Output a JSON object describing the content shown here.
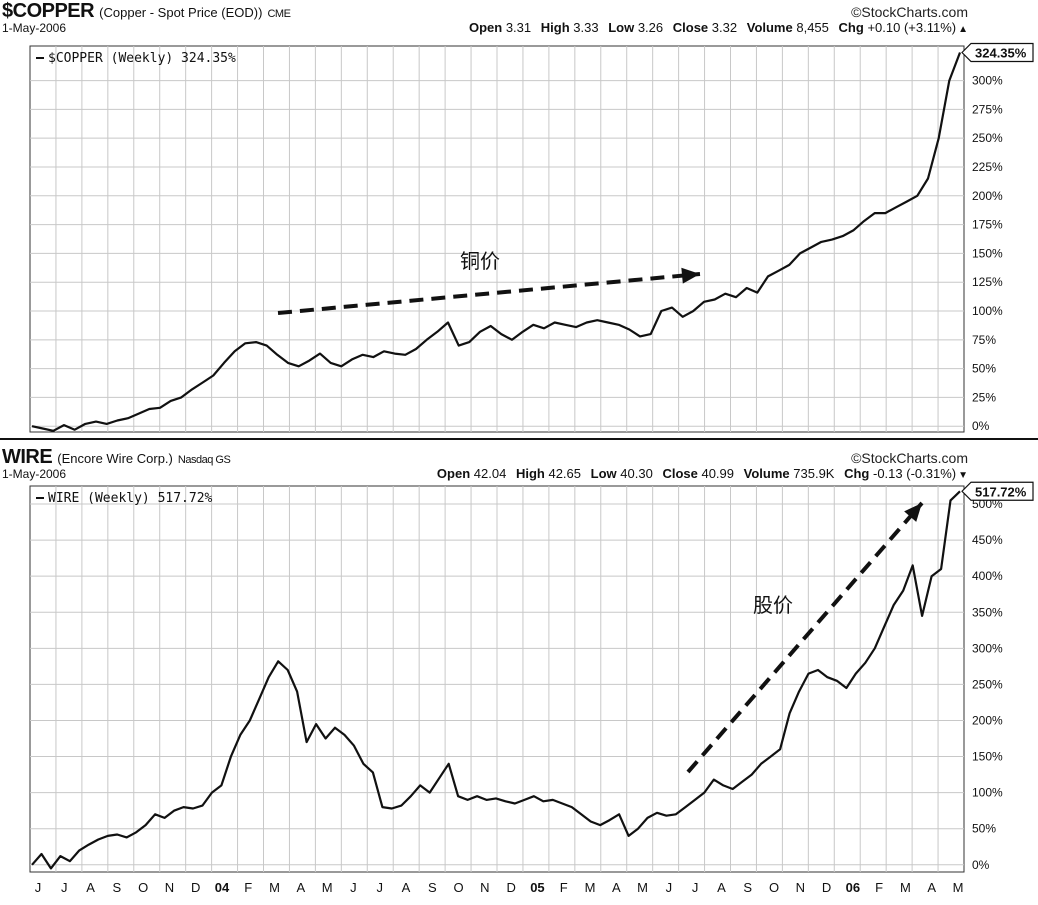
{
  "top": {
    "symbol": "$COPPER",
    "description": "(Copper - Spot Price (EOD))",
    "exchange": "CME",
    "brand": "©StockCharts.com",
    "date": "1-May-2006",
    "quote": {
      "open_label": "Open",
      "open": "3.31",
      "high_label": "High",
      "high": "3.33",
      "low_label": "Low",
      "low": "3.26",
      "close_label": "Close",
      "close": "3.32",
      "volume_label": "Volume",
      "volume": "8,455",
      "chg_label": "Chg",
      "chg": "+0.10 (+3.11%)",
      "dir_icon": "up-triangle"
    },
    "legend": "$COPPER (Weekly) 324.35%",
    "last_label": "324.35%",
    "annotation": "铜价"
  },
  "bottom": {
    "symbol": "WIRE",
    "description": "(Encore Wire Corp.)",
    "exchange": "Nasdaq GS",
    "brand": "©StockCharts.com",
    "date": "1-May-2006",
    "quote": {
      "open_label": "Open",
      "open": "42.04",
      "high_label": "High",
      "high": "42.65",
      "low_label": "Low",
      "low": "40.30",
      "close_label": "Close",
      "close": "40.99",
      "volume_label": "Volume",
      "volume": "735.9K",
      "chg_label": "Chg",
      "chg": "-0.13 (-0.31%)",
      "dir_icon": "down-triangle"
    },
    "legend": "WIRE (Weekly) 517.72%",
    "last_label": "517.72%",
    "annotation": "股价"
  },
  "chart_data": [
    {
      "type": "line",
      "series": [
        {
          "name": "$COPPER (Weekly) 324.35%",
          "values": [
            0,
            -2,
            -4,
            1,
            -3,
            2,
            4,
            2,
            5,
            7,
            11,
            15,
            16,
            22,
            25,
            32,
            38,
            44,
            55,
            65,
            72,
            73,
            70,
            62,
            55,
            52,
            57,
            63,
            55,
            52,
            58,
            62,
            60,
            65,
            63,
            62,
            67,
            75,
            82,
            90,
            70,
            73,
            82,
            87,
            80,
            75,
            82,
            88,
            85,
            90,
            88,
            86,
            90,
            92,
            90,
            88,
            84,
            78,
            80,
            100,
            103,
            95,
            100,
            108,
            110,
            115,
            112,
            120,
            116,
            130,
            135,
            140,
            150,
            155,
            160,
            162,
            165,
            170,
            178,
            185,
            185,
            190,
            195,
            200,
            215,
            250,
            300,
            324.35
          ]
        }
      ],
      "ylim": [
        -5,
        330
      ],
      "yticks": [
        "0%",
        "25%",
        "50%",
        "75%",
        "100%",
        "125%",
        "150%",
        "175%",
        "200%",
        "225%",
        "250%",
        "275%",
        "300%"
      ],
      "legend": "top-left",
      "grid": true
    },
    {
      "type": "line",
      "series": [
        {
          "name": "WIRE (Weekly) 517.72%",
          "values": [
            0,
            15,
            -5,
            12,
            5,
            20,
            28,
            35,
            40,
            42,
            38,
            45,
            55,
            70,
            65,
            75,
            80,
            78,
            82,
            100,
            110,
            150,
            180,
            200,
            230,
            260,
            282,
            270,
            240,
            170,
            195,
            175,
            190,
            180,
            165,
            140,
            128,
            80,
            78,
            82,
            95,
            110,
            100,
            120,
            140,
            95,
            90,
            95,
            90,
            92,
            88,
            85,
            90,
            95,
            88,
            90,
            85,
            80,
            70,
            60,
            55,
            62,
            70,
            40,
            50,
            65,
            72,
            68,
            70,
            80,
            90,
            100,
            118,
            110,
            105,
            115,
            125,
            140,
            150,
            160,
            210,
            240,
            265,
            270,
            260,
            255,
            245,
            265,
            280,
            300,
            330,
            360,
            380,
            415,
            345,
            400,
            410,
            505,
            517.72
          ]
        }
      ],
      "ylim": [
        -10,
        525
      ],
      "yticks": [
        "0%",
        "50%",
        "100%",
        "150%",
        "200%",
        "250%",
        "300%",
        "350%",
        "400%",
        "450%",
        "500%"
      ],
      "xticks": [
        "J",
        "J",
        "A",
        "S",
        "O",
        "N",
        "D",
        "04",
        "F",
        "M",
        "A",
        "M",
        "J",
        "J",
        "A",
        "S",
        "O",
        "N",
        "D",
        "05",
        "F",
        "M",
        "A",
        "M",
        "J",
        "J",
        "A",
        "S",
        "O",
        "N",
        "D",
        "06",
        "F",
        "M",
        "A",
        "M"
      ],
      "legend": "top-left",
      "grid": true
    }
  ]
}
